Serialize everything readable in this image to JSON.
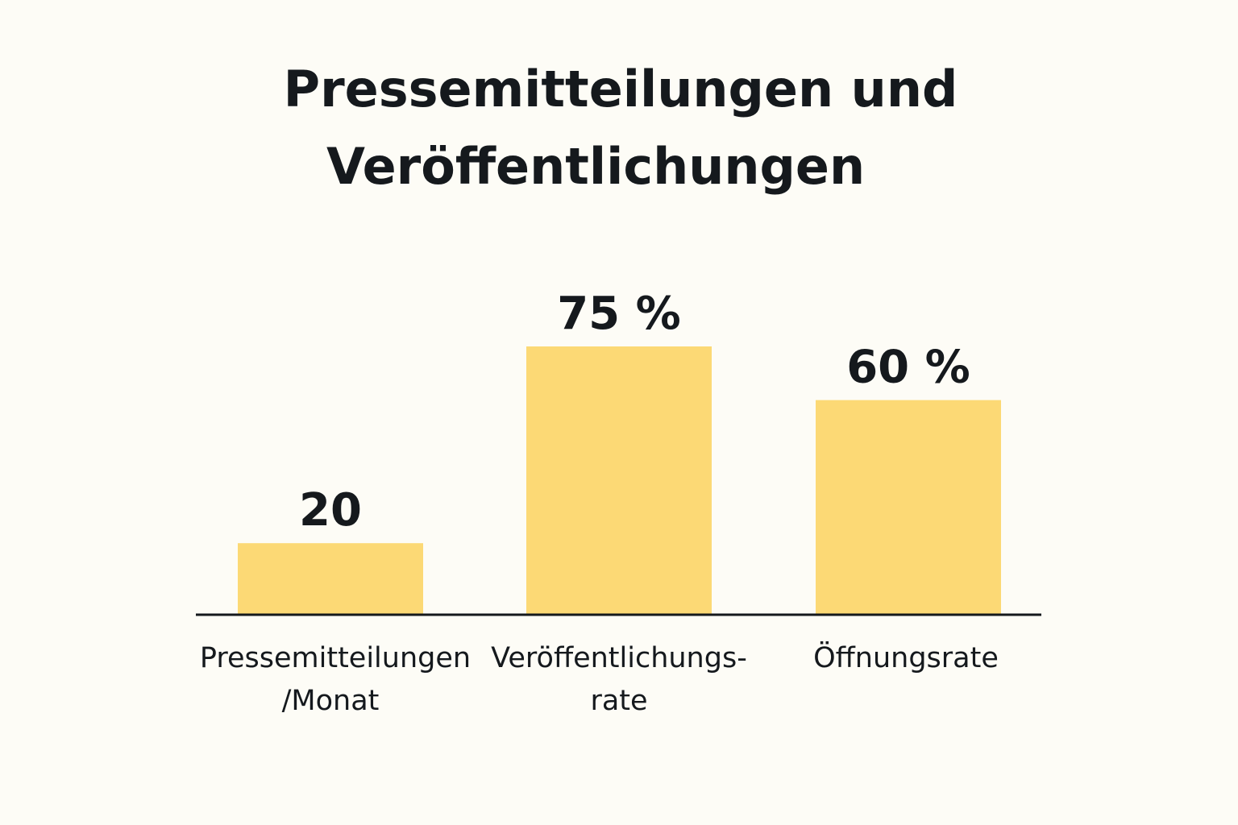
{
  "title_lines": [
    "Pressemitteilungen und",
    "Veröffentlichungen"
  ],
  "colors": {
    "background": "#fdfcf6",
    "bar": "#fcd975",
    "text": "#15191d",
    "axis": "#15191d"
  },
  "chart_data": {
    "type": "bar",
    "title": "Pressemitteilungen und Veröffentlichungen",
    "categories": [
      [
        "Pressemitteilungen",
        "/Monat"
      ],
      [
        "Veröffentlichungs-",
        "rate"
      ],
      [
        "Öffnungsrate"
      ]
    ],
    "values": [
      20,
      75,
      60
    ],
    "value_labels": [
      "20",
      "75 %",
      "60 %"
    ],
    "ylim": [
      0,
      100
    ],
    "grid": false,
    "legend": "none",
    "xlabel": "",
    "ylabel": ""
  }
}
